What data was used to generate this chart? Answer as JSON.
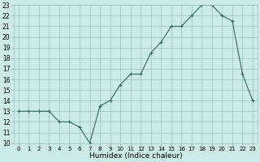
{
  "x": [
    0,
    1,
    2,
    3,
    4,
    5,
    6,
    7,
    8,
    9,
    10,
    11,
    12,
    13,
    14,
    15,
    16,
    17,
    18,
    19,
    20,
    21,
    22,
    23
  ],
  "y": [
    13,
    13,
    13,
    13,
    12,
    12,
    11.5,
    10,
    13.5,
    14,
    15.5,
    16.5,
    16.5,
    18.5,
    19.5,
    21,
    21,
    22,
    23,
    23,
    22,
    21.5,
    16.5,
    14
  ],
  "xlabel": "Humidex (Indice chaleur)",
  "line_color": "#2e6b5e",
  "marker": "+",
  "marker_color": "#2e6b5e",
  "bg_color": "#cceae8",
  "grid_color": "#9bbfbc",
  "xlim": [
    -0.5,
    23.5
  ],
  "ylim": [
    10,
    23
  ],
  "xticks": [
    0,
    1,
    2,
    3,
    4,
    5,
    6,
    7,
    8,
    9,
    10,
    11,
    12,
    13,
    14,
    15,
    16,
    17,
    18,
    19,
    20,
    21,
    22,
    23
  ],
  "yticks": [
    10,
    11,
    12,
    13,
    14,
    15,
    16,
    17,
    18,
    19,
    20,
    21,
    22,
    23
  ],
  "xtick_fontsize": 5,
  "ytick_fontsize": 5.5,
  "xlabel_fontsize": 6.5
}
